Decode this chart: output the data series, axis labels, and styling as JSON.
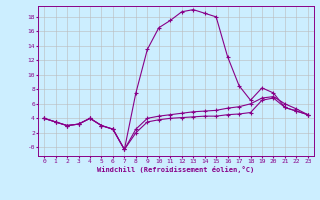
{
  "xlabel": "Windchill (Refroidissement éolien,°C)",
  "background_color": "#cceeff",
  "line_color": "#880088",
  "grid_color": "#bbbbbb",
  "xlim": [
    -0.5,
    23.5
  ],
  "ylim": [
    -1.2,
    19.5
  ],
  "xticks": [
    0,
    1,
    2,
    3,
    4,
    5,
    6,
    7,
    8,
    9,
    10,
    11,
    12,
    13,
    14,
    15,
    16,
    17,
    18,
    19,
    20,
    21,
    22,
    23
  ],
  "yticks": [
    0,
    2,
    4,
    6,
    8,
    10,
    12,
    14,
    16,
    18
  ],
  "ytick_labels": [
    "-0",
    "2",
    "4",
    "6",
    "8",
    "10",
    "12",
    "14",
    "16",
    "18"
  ],
  "line_main_x": [
    0,
    1,
    2,
    3,
    4,
    5,
    6,
    7,
    8,
    9,
    10,
    11,
    12,
    13,
    14,
    15,
    16,
    17,
    18,
    19,
    20,
    21,
    22,
    23
  ],
  "line_main_y": [
    4.0,
    3.5,
    3.0,
    3.2,
    4.0,
    3.0,
    2.5,
    -0.3,
    7.5,
    13.5,
    16.5,
    17.5,
    18.7,
    19.0,
    18.5,
    18.0,
    12.5,
    8.5,
    6.5,
    8.2,
    7.5,
    5.5,
    5.0,
    4.5
  ],
  "line_flat1_x": [
    0,
    1,
    2,
    3,
    4,
    5,
    6,
    7,
    8,
    9,
    10,
    11,
    12,
    13,
    14,
    15,
    16,
    17,
    18,
    19,
    20,
    21,
    22,
    23
  ],
  "line_flat1_y": [
    4.0,
    3.5,
    3.0,
    3.2,
    4.0,
    3.0,
    2.5,
    -0.3,
    2.0,
    3.5,
    3.8,
    4.0,
    4.1,
    4.2,
    4.3,
    4.3,
    4.5,
    4.6,
    4.8,
    6.5,
    6.8,
    5.5,
    5.0,
    4.5
  ],
  "line_flat2_x": [
    0,
    1,
    2,
    3,
    4,
    5,
    6,
    7,
    8,
    9,
    10,
    11,
    12,
    13,
    14,
    15,
    16,
    17,
    18,
    19,
    20,
    21,
    22,
    23
  ],
  "line_flat2_y": [
    4.0,
    3.5,
    3.0,
    3.2,
    4.0,
    3.0,
    2.5,
    -0.3,
    2.5,
    4.0,
    4.3,
    4.5,
    4.7,
    4.9,
    5.0,
    5.1,
    5.4,
    5.6,
    6.0,
    6.8,
    7.0,
    6.0,
    5.3,
    4.5
  ]
}
